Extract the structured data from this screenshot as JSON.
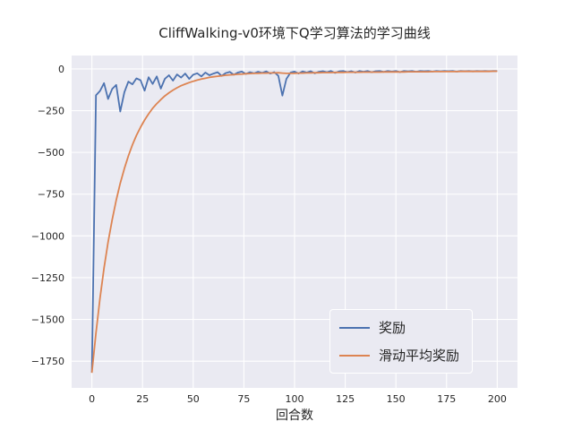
{
  "chart_data": {
    "type": "line",
    "title": "CliffWalking-v0环境下Q学习算法的学习曲线",
    "xlabel": "回合数",
    "ylabel": "",
    "xlim": [
      -10,
      210
    ],
    "ylim": [
      -1910,
      80
    ],
    "xticks": [
      0,
      25,
      50,
      75,
      100,
      125,
      150,
      175,
      200
    ],
    "yticks": [
      0,
      -250,
      -500,
      -750,
      -1000,
      -1250,
      -1500,
      -1750
    ],
    "grid": true,
    "axes_background": "#eaeaf2",
    "grid_color": "#ffffff",
    "legend": {
      "position": "lower right"
    },
    "series": [
      {
        "name": "奖励",
        "color": "#4c72b0",
        "x": [
          0,
          2,
          4,
          6,
          8,
          10,
          12,
          14,
          16,
          18,
          20,
          22,
          24,
          26,
          28,
          30,
          32,
          34,
          36,
          38,
          40,
          42,
          44,
          46,
          48,
          50,
          52,
          54,
          56,
          58,
          60,
          62,
          64,
          66,
          68,
          70,
          72,
          74,
          76,
          78,
          80,
          82,
          84,
          86,
          88,
          90,
          92,
          94,
          96,
          98,
          100,
          102,
          104,
          106,
          108,
          110,
          112,
          114,
          116,
          118,
          120,
          122,
          124,
          126,
          128,
          130,
          132,
          134,
          136,
          138,
          140,
          142,
          144,
          146,
          148,
          150,
          152,
          154,
          156,
          158,
          160,
          162,
          164,
          166,
          168,
          170,
          172,
          174,
          176,
          178,
          180,
          182,
          184,
          186,
          188,
          190,
          192,
          194,
          196,
          198,
          200
        ],
        "y": [
          -1819,
          -158,
          -132,
          -85,
          -180,
          -120,
          -96,
          -255,
          -140,
          -76,
          -92,
          -57,
          -68,
          -130,
          -50,
          -90,
          -45,
          -118,
          -60,
          -38,
          -70,
          -33,
          -52,
          -28,
          -60,
          -35,
          -26,
          -45,
          -22,
          -38,
          -28,
          -20,
          -42,
          -25,
          -18,
          -35,
          -22,
          -16,
          -30,
          -20,
          -26,
          -17,
          -24,
          -15,
          -28,
          -19,
          -42,
          -160,
          -60,
          -22,
          -16,
          -28,
          -15,
          -22,
          -14,
          -26,
          -17,
          -14,
          -20,
          -13,
          -24,
          -15,
          -13,
          -19,
          -14,
          -22,
          -13,
          -17,
          -13,
          -20,
          -14,
          -13,
          -18,
          -13,
          -16,
          -13,
          -19,
          -13,
          -15,
          -13,
          -17,
          -13,
          -14,
          -13,
          -16,
          -13,
          -15,
          -13,
          -14,
          -13,
          -16,
          -13,
          -14,
          -13,
          -15,
          -13,
          -14,
          -13,
          -14,
          -13,
          -13
        ]
      },
      {
        "name": "滑动平均奖励",
        "color": "#dd8452",
        "x": [
          0,
          2,
          4,
          6,
          8,
          10,
          12,
          14,
          16,
          18,
          20,
          22,
          24,
          26,
          28,
          30,
          32,
          34,
          36,
          38,
          40,
          42,
          44,
          46,
          48,
          50,
          52,
          54,
          56,
          58,
          60,
          62,
          64,
          66,
          68,
          70,
          72,
          74,
          76,
          78,
          80,
          82,
          84,
          86,
          88,
          90,
          92,
          94,
          96,
          98,
          100,
          102,
          104,
          106,
          108,
          110,
          112,
          114,
          116,
          118,
          120,
          122,
          124,
          126,
          128,
          130,
          132,
          134,
          136,
          138,
          140,
          142,
          144,
          146,
          148,
          150,
          152,
          154,
          156,
          158,
          160,
          162,
          164,
          166,
          168,
          170,
          172,
          174,
          176,
          178,
          180,
          182,
          184,
          186,
          188,
          190,
          192,
          194,
          196,
          198,
          200
        ],
        "y": [
          -1820,
          -1581,
          -1373,
          -1193,
          -1038,
          -903,
          -786,
          -685,
          -597,
          -521,
          -455,
          -398,
          -349,
          -306,
          -269,
          -236,
          -208,
          -184,
          -162,
          -143,
          -127,
          -113,
          -101,
          -91,
          -82,
          -74,
          -67,
          -61,
          -56,
          -51,
          -47,
          -44,
          -41,
          -38,
          -36,
          -34,
          -32,
          -31,
          -29,
          -28,
          -27,
          -26,
          -25,
          -25,
          -24,
          -24,
          -23,
          -25,
          -27,
          -27,
          -26,
          -25,
          -25,
          -24,
          -24,
          -23,
          -23,
          -22,
          -22,
          -22,
          -21,
          -21,
          -21,
          -20,
          -20,
          -20,
          -20,
          -19,
          -19,
          -19,
          -19,
          -19,
          -18,
          -18,
          -18,
          -18,
          -18,
          -18,
          -17,
          -17,
          -17,
          -17,
          -17,
          -17,
          -16,
          -16,
          -16,
          -16,
          -16,
          -16,
          -16,
          -15,
          -15,
          -15,
          -15,
          -15,
          -15,
          -15,
          -15,
          -14,
          -14
        ]
      }
    ]
  }
}
